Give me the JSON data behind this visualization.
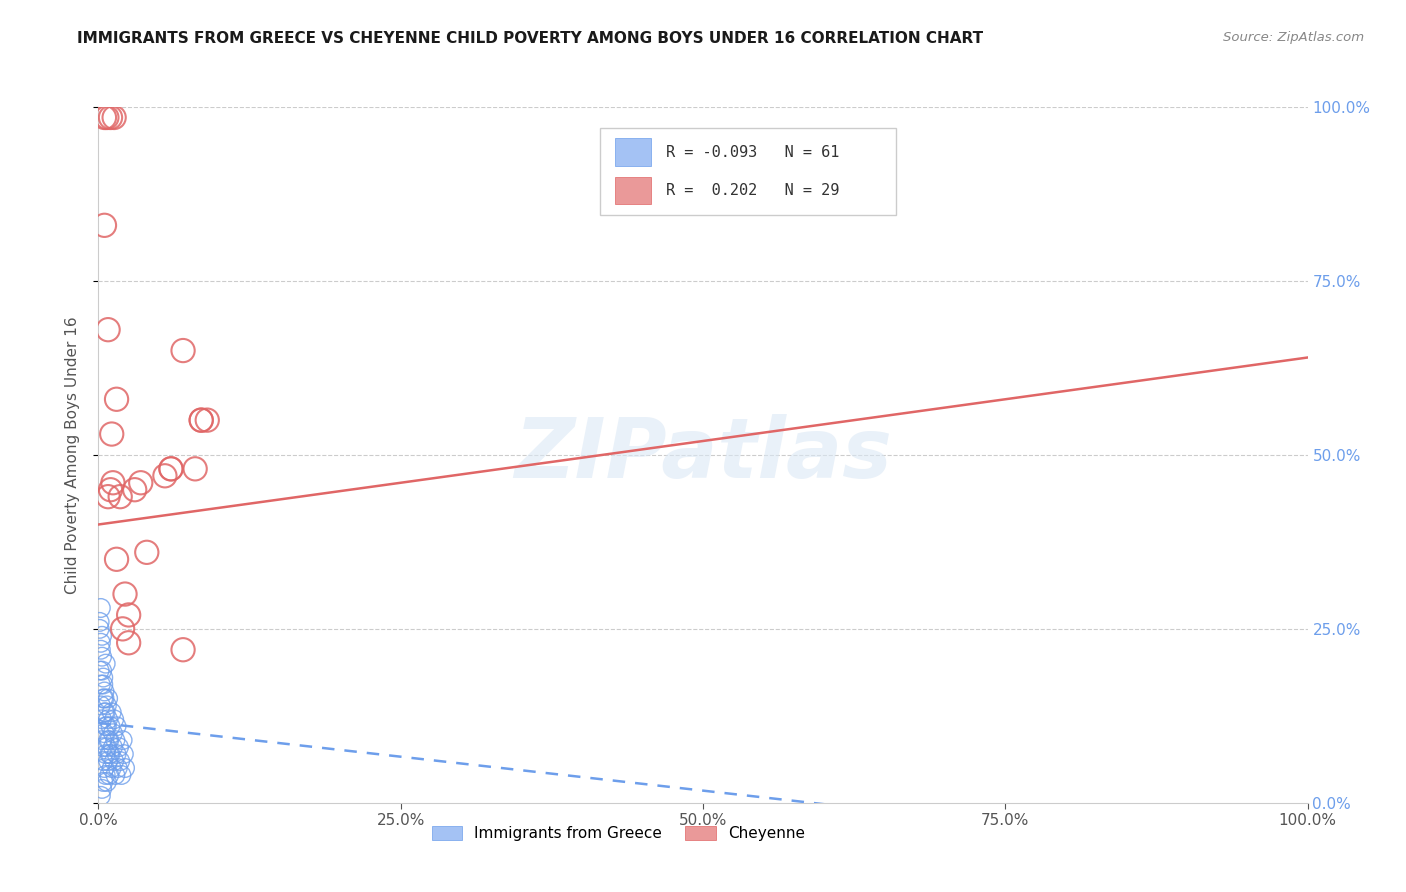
{
  "title": "IMMIGRANTS FROM GREECE VS CHEYENNE CHILD POVERTY AMONG BOYS UNDER 16 CORRELATION CHART",
  "source": "Source: ZipAtlas.com",
  "ylabel": "Child Poverty Among Boys Under 16",
  "xlim": [
    0,
    1.0
  ],
  "ylim": [
    0,
    1.0
  ],
  "blue_color": "#a4c2f4",
  "blue_edge_color": "#6d9eeb",
  "pink_color": "#ea9999",
  "pink_edge_color": "#e06666",
  "blue_line_color": "#6d9eeb",
  "pink_line_color": "#e06666",
  "right_axis_color": "#6d9eeb",
  "legend_R_blue": "-0.093",
  "legend_N_blue": "61",
  "legend_R_pink": "0.202",
  "legend_N_pink": "29",
  "legend_label_blue": "Immigrants from Greece",
  "legend_label_pink": "Cheyenne",
  "watermark": "ZIPatlas",
  "blue_trend": [
    0.0,
    1.0,
    0.115,
    -0.08
  ],
  "pink_trend": [
    0.0,
    1.0,
    0.4,
    0.64
  ],
  "blue_x": [
    0.001,
    0.002,
    0.002,
    0.002,
    0.003,
    0.003,
    0.003,
    0.003,
    0.004,
    0.004,
    0.004,
    0.004,
    0.005,
    0.005,
    0.005,
    0.005,
    0.006,
    0.006,
    0.006,
    0.006,
    0.007,
    0.007,
    0.007,
    0.008,
    0.008,
    0.008,
    0.009,
    0.009,
    0.01,
    0.01,
    0.011,
    0.011,
    0.012,
    0.012,
    0.013,
    0.013,
    0.014,
    0.014,
    0.015,
    0.015,
    0.016,
    0.017,
    0.018,
    0.019,
    0.02,
    0.021,
    0.022,
    0.001,
    0.002,
    0.003,
    0.004,
    0.005,
    0.006,
    0.007,
    0.008,
    0.009,
    0.002,
    0.003,
    0.004,
    0.001,
    0.002
  ],
  "blue_y": [
    0.19,
    0.22,
    0.17,
    0.14,
    0.21,
    0.12,
    0.09,
    0.24,
    0.15,
    0.08,
    0.18,
    0.06,
    0.13,
    0.05,
    0.16,
    0.1,
    0.2,
    0.04,
    0.11,
    0.07,
    0.14,
    0.03,
    0.08,
    0.12,
    0.06,
    0.15,
    0.09,
    0.04,
    0.11,
    0.07,
    0.13,
    0.05,
    0.1,
    0.08,
    0.06,
    0.12,
    0.04,
    0.09,
    0.07,
    0.11,
    0.05,
    0.08,
    0.06,
    0.04,
    0.09,
    0.07,
    0.05,
    0.25,
    0.23,
    0.19,
    0.17,
    0.15,
    0.13,
    0.11,
    0.09,
    0.07,
    0.01,
    0.02,
    0.03,
    0.26,
    0.28
  ],
  "pink_x": [
    0.005,
    0.007,
    0.01,
    0.013,
    0.005,
    0.008,
    0.011,
    0.015,
    0.008,
    0.012,
    0.018,
    0.022,
    0.025,
    0.03,
    0.035,
    0.04,
    0.055,
    0.06,
    0.07,
    0.08,
    0.085,
    0.09,
    0.01,
    0.015,
    0.02,
    0.025,
    0.06,
    0.07,
    0.085
  ],
  "pink_y": [
    0.985,
    0.985,
    0.985,
    0.985,
    0.83,
    0.68,
    0.53,
    0.58,
    0.44,
    0.46,
    0.44,
    0.3,
    0.27,
    0.45,
    0.46,
    0.36,
    0.47,
    0.48,
    0.65,
    0.48,
    0.55,
    0.55,
    0.45,
    0.35,
    0.25,
    0.23,
    0.48,
    0.22,
    0.55
  ]
}
